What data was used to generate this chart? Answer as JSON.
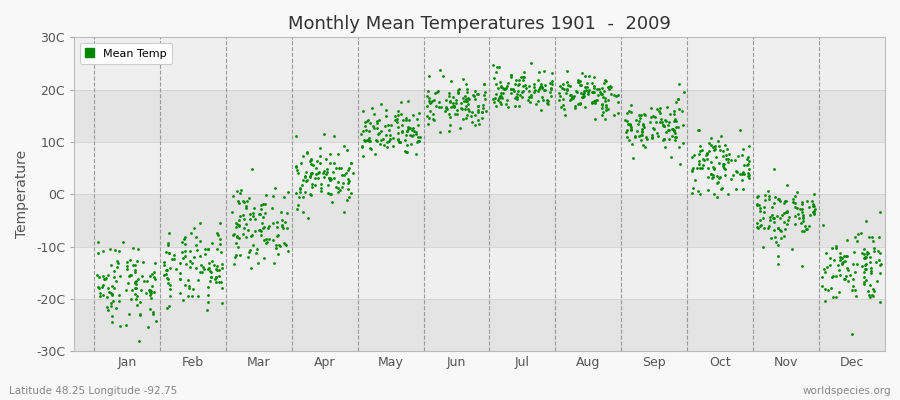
{
  "title": "Monthly Mean Temperatures 1901  -  2009",
  "ylabel": "Temperature",
  "subtitle_left": "Latitude 48.25 Longitude -92.75",
  "subtitle_right": "worldspecies.org",
  "legend_label": "Mean Temp",
  "marker_color": "#008800",
  "fig_bg_color": "#f8f8f8",
  "plot_bg_color": "#f0f0f0",
  "band_color_dark": "#e4e4e4",
  "band_color_light": "#efefef",
  "ylim": [
    -30,
    30
  ],
  "yticks": [
    -30,
    -20,
    -10,
    0,
    10,
    20,
    30
  ],
  "ytick_labels": [
    "-30C",
    "-20C",
    "-10C",
    "0C",
    "10C",
    "20C",
    "30C"
  ],
  "month_names": [
    "Jan",
    "Feb",
    "Mar",
    "Apr",
    "May",
    "Jun",
    "Jul",
    "Aug",
    "Sep",
    "Oct",
    "Nov",
    "Dec"
  ],
  "mean_temps": [
    -17.0,
    -14.5,
    -6.0,
    3.5,
    11.5,
    17.0,
    20.0,
    19.0,
    13.0,
    5.5,
    -4.0,
    -13.5
  ],
  "std_temps": [
    4.2,
    3.8,
    3.5,
    3.0,
    2.5,
    2.3,
    2.0,
    2.0,
    2.5,
    2.5,
    3.2,
    3.8
  ],
  "n_years": 109,
  "seed": 42,
  "marker_size": 4,
  "dpi": 100,
  "fig_width": 9.0,
  "fig_height": 4.0
}
